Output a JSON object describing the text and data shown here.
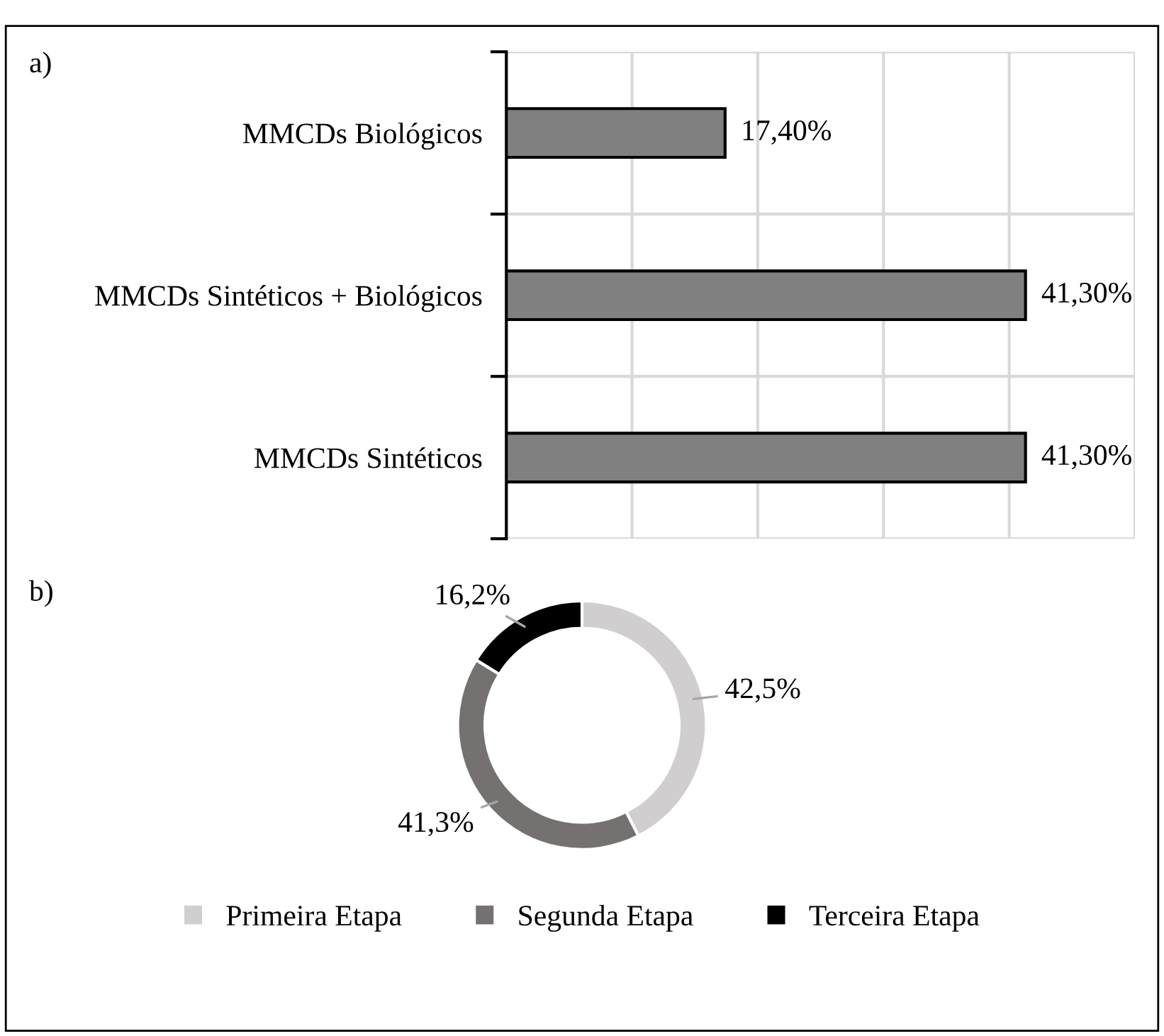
{
  "chart_data": [
    {
      "type": "bar",
      "title": "a)",
      "orientation": "horizontal",
      "categories": [
        "MMCDs Biológicos",
        "MMCDs Sintéticos + Biológicos",
        "MMCDs Sintéticos"
      ],
      "values": [
        17.4,
        41.3,
        41.3
      ],
      "value_labels": [
        "17,40%",
        "41,30%",
        "41,30%"
      ],
      "color": "#808080",
      "xlim": [
        0,
        50
      ],
      "xticks": [
        {
          "value": 0,
          "label": null
        },
        {
          "value": 10,
          "label": null
        },
        {
          "value": 20,
          "label": null
        },
        {
          "value": 30,
          "label": null
        },
        {
          "value": 40,
          "label": null
        },
        {
          "value": 50,
          "label": null
        }
      ],
      "tick_labels": "y",
      "grid": true
    },
    {
      "type": "donut",
      "title": "b)",
      "categories": [
        "Primeira Etapa",
        "Segunda Etapa",
        "Terceira Etapa"
      ],
      "values": [
        42.5,
        41.3,
        16.2
      ],
      "value_labels": [
        "42,5%",
        "41,3%",
        "16,2%"
      ],
      "colors": [
        "#d0cece",
        "#767171",
        "#000000"
      ],
      "legend": "bottom"
    }
  ]
}
